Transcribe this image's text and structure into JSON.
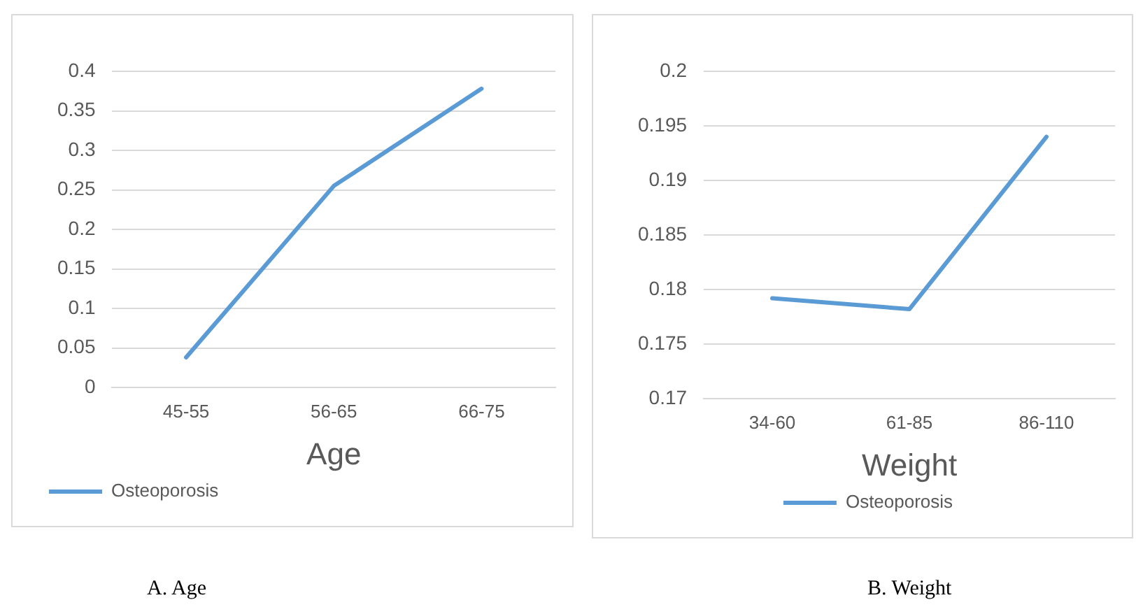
{
  "chart_data": [
    {
      "type": "line",
      "xlabel": "Age",
      "categories": [
        "45-55",
        "56-65",
        "66-75"
      ],
      "series": [
        {
          "name": "Osteoporosis",
          "color": "#5b9bd5",
          "values": [
            0.038,
            0.255,
            0.378
          ]
        }
      ],
      "ylim": [
        0,
        0.4
      ],
      "yticks": [
        0,
        0.05,
        0.1,
        0.15,
        0.2,
        0.25,
        0.3,
        0.35,
        0.4
      ],
      "grid": "y",
      "legend": "bottom left",
      "marker": "none",
      "line_style": "solid",
      "annotations": [
        "A. Age"
      ]
    },
    {
      "type": "line",
      "xlabel": "Weight",
      "categories": [
        "34-60",
        "61-85",
        "86-110"
      ],
      "series": [
        {
          "name": "Osteoporosis",
          "color": "#5b9bd5",
          "values": [
            0.1792,
            0.1782,
            0.194
          ]
        }
      ],
      "ylim": [
        0.17,
        0.2
      ],
      "yticks": [
        0.17,
        0.175,
        0.18,
        0.185,
        0.19,
        0.195,
        0.2
      ],
      "grid": "y",
      "legend": "bottom",
      "marker": "none",
      "line_style": "solid",
      "annotations": [
        "B. Weight"
      ]
    }
  ]
}
